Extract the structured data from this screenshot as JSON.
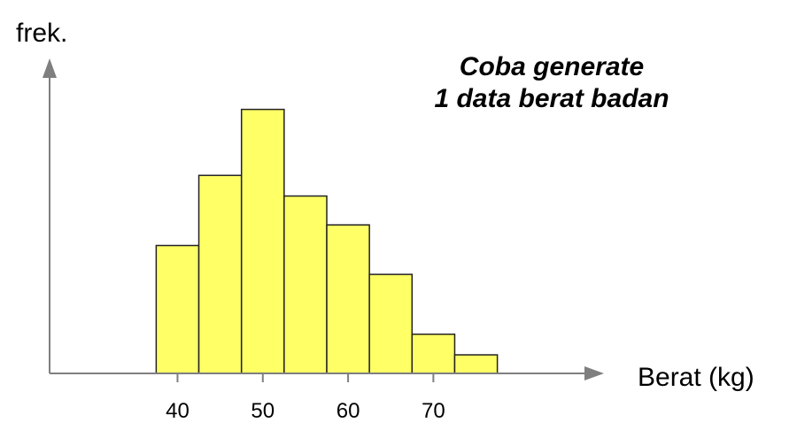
{
  "chart_data": {
    "type": "bar",
    "title_lines": [
      "Coba generate",
      "1 data berat badan"
    ],
    "xlabel": "Berat (kg)",
    "ylabel": "frek.",
    "bins": [
      {
        "from": 37.5,
        "to": 42.5,
        "value": 6.2
      },
      {
        "from": 42.5,
        "to": 47.5,
        "value": 9.6
      },
      {
        "from": 47.5,
        "to": 52.5,
        "value": 12.8
      },
      {
        "from": 52.5,
        "to": 57.5,
        "value": 8.6
      },
      {
        "from": 57.5,
        "to": 62.5,
        "value": 7.2
      },
      {
        "from": 62.5,
        "to": 67.5,
        "value": 4.8
      },
      {
        "from": 67.5,
        "to": 72.5,
        "value": 1.9
      },
      {
        "from": 72.5,
        "to": 77.5,
        "value": 0.9
      }
    ],
    "xticks": [
      40,
      50,
      60,
      70
    ],
    "xtick_labels": [
      "40",
      "50",
      "60",
      "70"
    ],
    "xlim": [
      25,
      90
    ],
    "ylim": [
      0,
      14.5
    ],
    "grid": false,
    "colors": {
      "bar_fill": "#ffff66",
      "bar_stroke": "#222222",
      "axis": "#7f7f7f"
    }
  }
}
